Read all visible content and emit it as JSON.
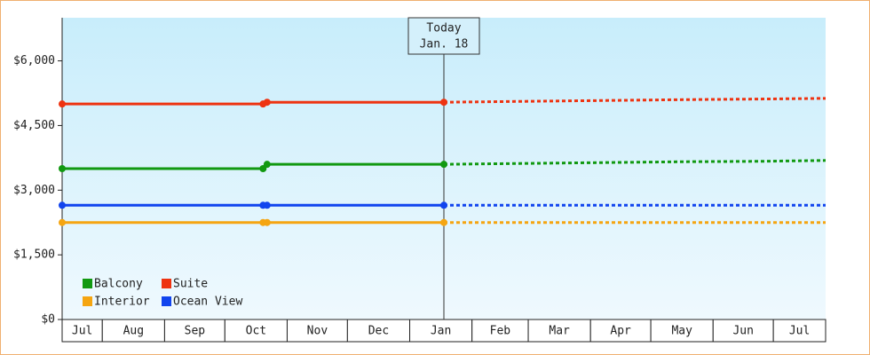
{
  "chart_data": {
    "type": "line",
    "x": [
      11,
      111,
      113,
      201
    ],
    "forecast_x": [
      201,
      240,
      280,
      320,
      360,
      391
    ],
    "xlim": [
      11,
      391
    ],
    "xticks": [
      {
        "value": 0,
        "label": "Jul"
      },
      {
        "value": 31,
        "label": "Aug"
      },
      {
        "value": 62,
        "label": "Sep"
      },
      {
        "value": 92,
        "label": "Oct"
      },
      {
        "value": 123,
        "label": "Nov"
      },
      {
        "value": 153,
        "label": "Dec"
      },
      {
        "value": 184,
        "label": "Jan"
      },
      {
        "value": 215,
        "label": "Feb"
      },
      {
        "value": 243,
        "label": "Mar"
      },
      {
        "value": 274,
        "label": "Apr"
      },
      {
        "value": 304,
        "label": "May"
      },
      {
        "value": 335,
        "label": "Jun"
      },
      {
        "value": 365,
        "label": "Jul"
      }
    ],
    "ylim": [
      0,
      7000
    ],
    "yticks": [
      {
        "value": 0,
        "label": "$0"
      },
      {
        "value": 1500,
        "label": "$1,500"
      },
      {
        "value": 3000,
        "label": "$3,000"
      },
      {
        "value": 4500,
        "label": "$4,500"
      },
      {
        "value": 6000,
        "label": "$6,000"
      }
    ],
    "annotation": {
      "x": 201,
      "lines": [
        "Today",
        "Jan. 18"
      ]
    },
    "series": [
      {
        "name": "Balcony",
        "color": "#119911",
        "values": [
          3500,
          3500,
          3600,
          3600
        ],
        "forecast": [
          3600,
          3620,
          3640,
          3660,
          3670,
          3690
        ]
      },
      {
        "name": "Suite",
        "color": "#ee3311",
        "values": [
          5000,
          5000,
          5040,
          5040
        ],
        "forecast": [
          5040,
          5060,
          5080,
          5100,
          5115,
          5130
        ]
      },
      {
        "name": "Interior",
        "color": "#f5a511",
        "values": [
          2250,
          2250,
          2250,
          2250
        ],
        "forecast": [
          2250,
          2250,
          2250,
          2250,
          2250,
          2250
        ]
      },
      {
        "name": "Ocean View",
        "color": "#1144ee",
        "values": [
          2650,
          2650,
          2650,
          2650
        ],
        "forecast": [
          2650,
          2650,
          2650,
          2650,
          2650,
          2650
        ]
      }
    ]
  }
}
